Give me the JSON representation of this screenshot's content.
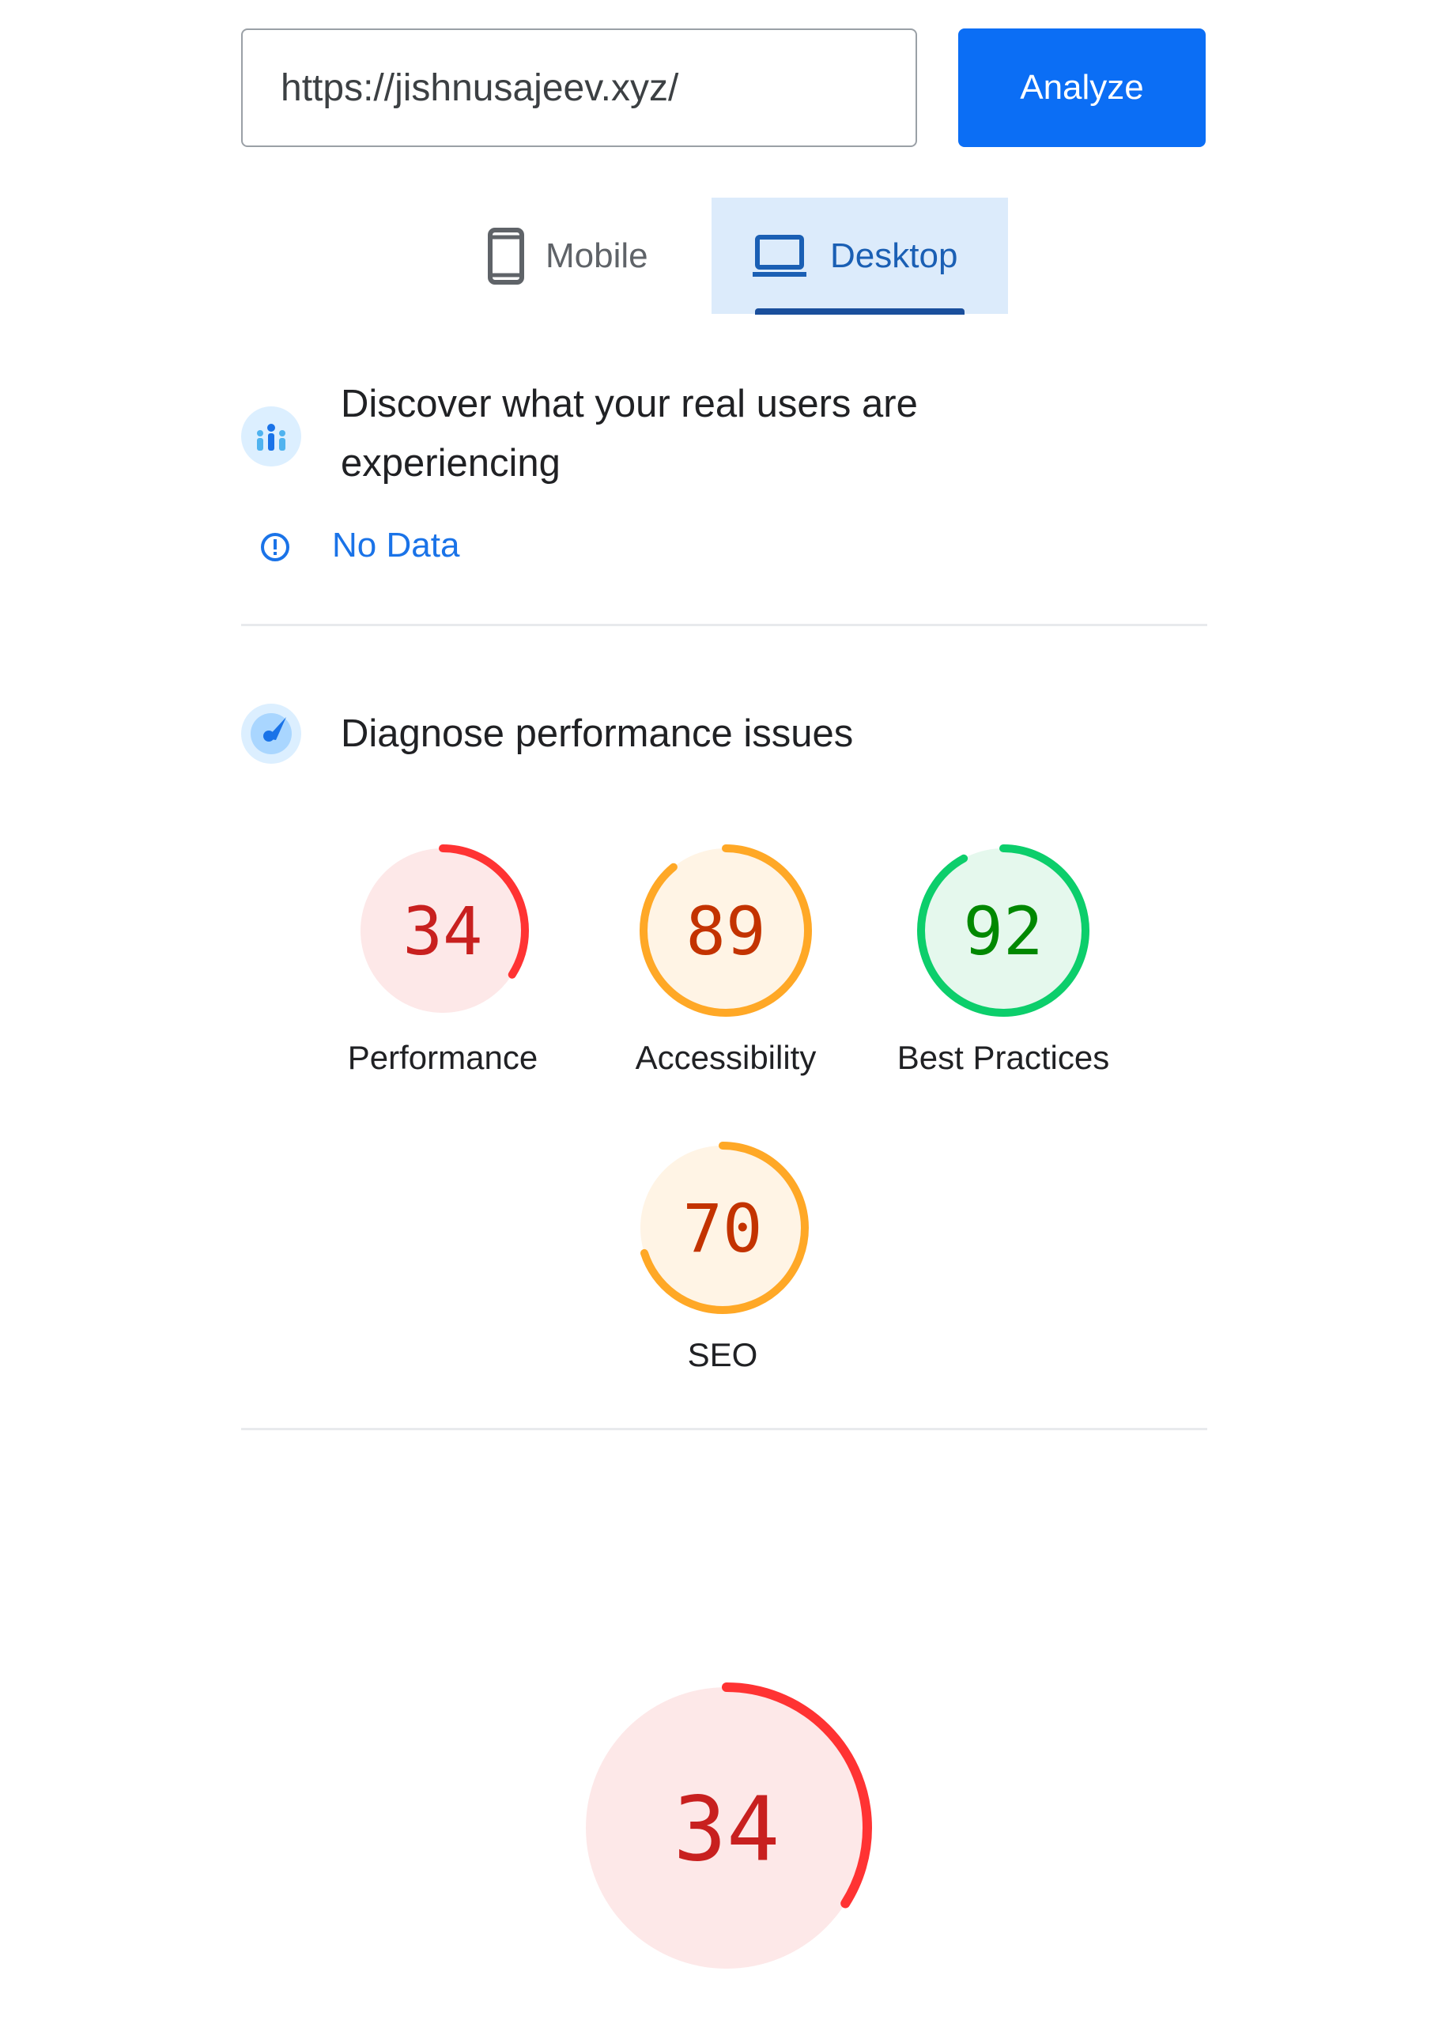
{
  "search": {
    "url_value": "https://jishnusajeev.xyz/",
    "analyze_label": "Analyze"
  },
  "tabs": [
    {
      "label": "Mobile",
      "icon": "smartphone-icon",
      "selected": false
    },
    {
      "label": "Desktop",
      "icon": "laptop-icon",
      "selected": true
    }
  ],
  "field_data": {
    "title": "Discover what your real users are experiencing",
    "icon": "users-icon",
    "status_icon": "info-icon",
    "status": "No Data"
  },
  "lab_data": {
    "title": "Diagnose performance issues",
    "icon": "radar-icon"
  },
  "scores": [
    {
      "label": "Performance",
      "value": 34,
      "rating": "fail"
    },
    {
      "label": "Accessibility",
      "value": 89,
      "rating": "average"
    },
    {
      "label": "Best Practices",
      "value": 92,
      "rating": "pass"
    },
    {
      "label": "SEO",
      "value": 70,
      "rating": "average"
    }
  ],
  "featured_score": {
    "value": 34,
    "rating": "fail"
  },
  "colors": {
    "accent": "#0b6ef5",
    "fail": {
      "arc": "#ff3333",
      "bg": "#fde8e8",
      "text": "#c8201f"
    },
    "average": {
      "arc": "#ffa826",
      "bg": "#fff4e5",
      "text": "#c33300"
    },
    "pass": {
      "arc": "#0cce6b",
      "bg": "#e5f8ed",
      "text": "#008800"
    }
  }
}
